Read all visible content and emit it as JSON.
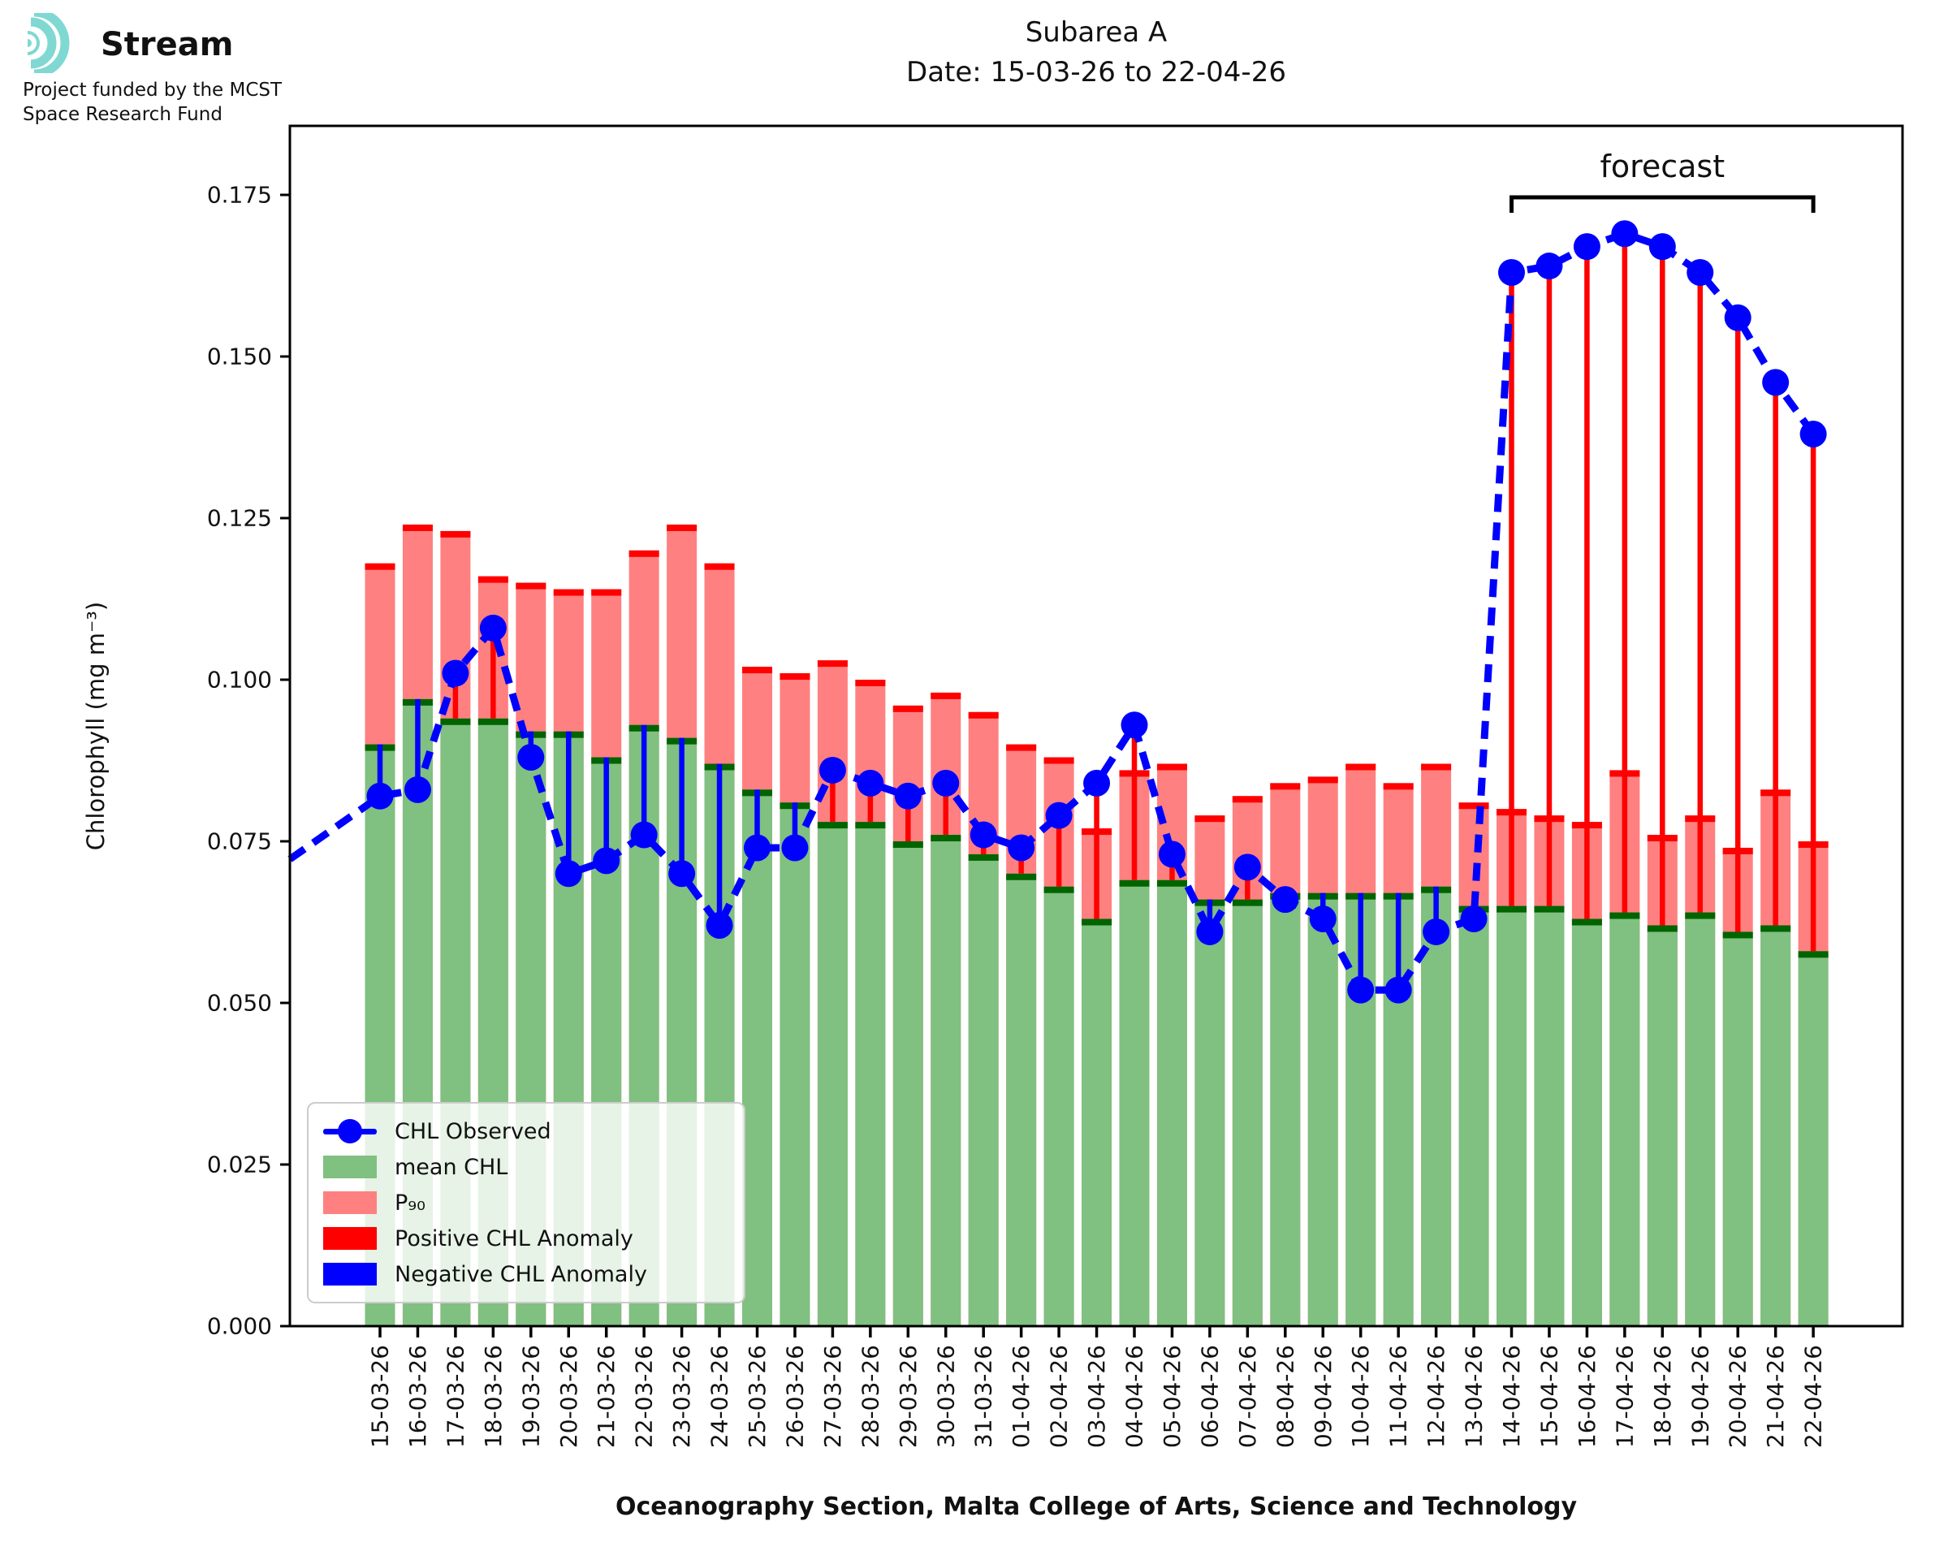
{
  "logo": {
    "brand": "Stream",
    "subtitle_line1": "Project funded by the MCST",
    "subtitle_line2": "Space Research Fund",
    "accent_color": "#7fd8d2"
  },
  "chart_data": {
    "type": "bar",
    "title_line1": "Subarea A",
    "title_line2": "Date: 15-03-26 to 22-04-26",
    "xlabel": "Oceanography Section, Malta College of Arts, Science and Technology",
    "ylabel": "Chlorophyll (mg m⁻³)",
    "ylim": [
      0,
      0.1857
    ],
    "yticks": [
      "0.000",
      "0.025",
      "0.050",
      "0.075",
      "0.100",
      "0.125",
      "0.150",
      "0.175"
    ],
    "grid": false,
    "legend_position": "lower left",
    "categories": [
      "15-03-26",
      "16-03-26",
      "17-03-26",
      "18-03-26",
      "19-03-26",
      "20-03-26",
      "21-03-26",
      "22-03-26",
      "23-03-26",
      "24-03-26",
      "25-03-26",
      "26-03-26",
      "27-03-26",
      "28-03-26",
      "29-03-26",
      "30-03-26",
      "31-03-26",
      "01-04-26",
      "02-04-26",
      "03-04-26",
      "04-04-26",
      "05-04-26",
      "06-04-26",
      "07-04-26",
      "08-04-26",
      "09-04-26",
      "10-04-26",
      "11-04-26",
      "12-04-26",
      "13-04-26",
      "14-04-26",
      "15-04-26",
      "16-04-26",
      "17-04-26",
      "18-04-26",
      "19-04-26",
      "20-04-26",
      "21-04-26",
      "22-04-26"
    ],
    "series": [
      {
        "name": "mean CHL",
        "values": [
          0.09,
          0.097,
          0.094,
          0.094,
          0.092,
          0.092,
          0.088,
          0.093,
          0.091,
          0.087,
          0.083,
          0.081,
          0.078,
          0.078,
          0.075,
          0.076,
          0.073,
          0.07,
          0.068,
          0.063,
          0.069,
          0.069,
          0.066,
          0.066,
          0.067,
          0.067,
          0.067,
          0.067,
          0.068,
          0.065,
          0.065,
          0.065,
          0.063,
          0.064,
          0.062,
          0.064,
          0.061,
          0.062,
          0.058
        ]
      },
      {
        "name": "P₉₀",
        "values": [
          0.118,
          0.124,
          0.123,
          0.116,
          0.115,
          0.114,
          0.114,
          0.12,
          0.124,
          0.118,
          0.102,
          0.101,
          0.103,
          0.1,
          0.096,
          0.098,
          0.095,
          0.09,
          0.088,
          0.077,
          0.086,
          0.087,
          0.079,
          0.082,
          0.084,
          0.085,
          0.087,
          0.084,
          0.087,
          0.081,
          0.08,
          0.079,
          0.078,
          0.086,
          0.076,
          0.079,
          0.074,
          0.083,
          0.075
        ]
      },
      {
        "name": "CHL Observed",
        "values": [
          0.082,
          0.083,
          0.101,
          0.108,
          0.088,
          0.07,
          0.072,
          0.076,
          0.07,
          0.062,
          0.074,
          0.074,
          0.086,
          0.084,
          0.082,
          0.084,
          0.076,
          0.074,
          0.079,
          0.084,
          0.093,
          0.073,
          0.061,
          0.071,
          0.066,
          0.063,
          0.052,
          0.052,
          0.061,
          0.063,
          0.163,
          0.164,
          0.167,
          0.169,
          0.167,
          0.163,
          0.156,
          0.146,
          0.138
        ]
      }
    ],
    "forecast": {
      "label": "forecast",
      "start": "14-04-26",
      "end": "22-04-26"
    },
    "legend": [
      {
        "label": "CHL Observed",
        "type": "line-dot",
        "color": "#0000ff"
      },
      {
        "label": "mean CHL",
        "type": "patch",
        "color": "#80c080"
      },
      {
        "label": "P₉₀",
        "type": "patch",
        "color": "#ff8080"
      },
      {
        "label": "Positive CHL Anomaly",
        "type": "patch",
        "color": "#ff0000"
      },
      {
        "label": "Negative CHL Anomaly",
        "type": "patch",
        "color": "#0000ff"
      }
    ],
    "colors": {
      "mean_fill": "#80c080",
      "mean_cap": "#006400",
      "p90_fill": "#ff8080",
      "p90_cap": "#ff0000",
      "observed": "#0000ff",
      "positive_anomaly": "#ff0000",
      "negative_anomaly": "#0000ff",
      "axis": "#000000"
    }
  }
}
